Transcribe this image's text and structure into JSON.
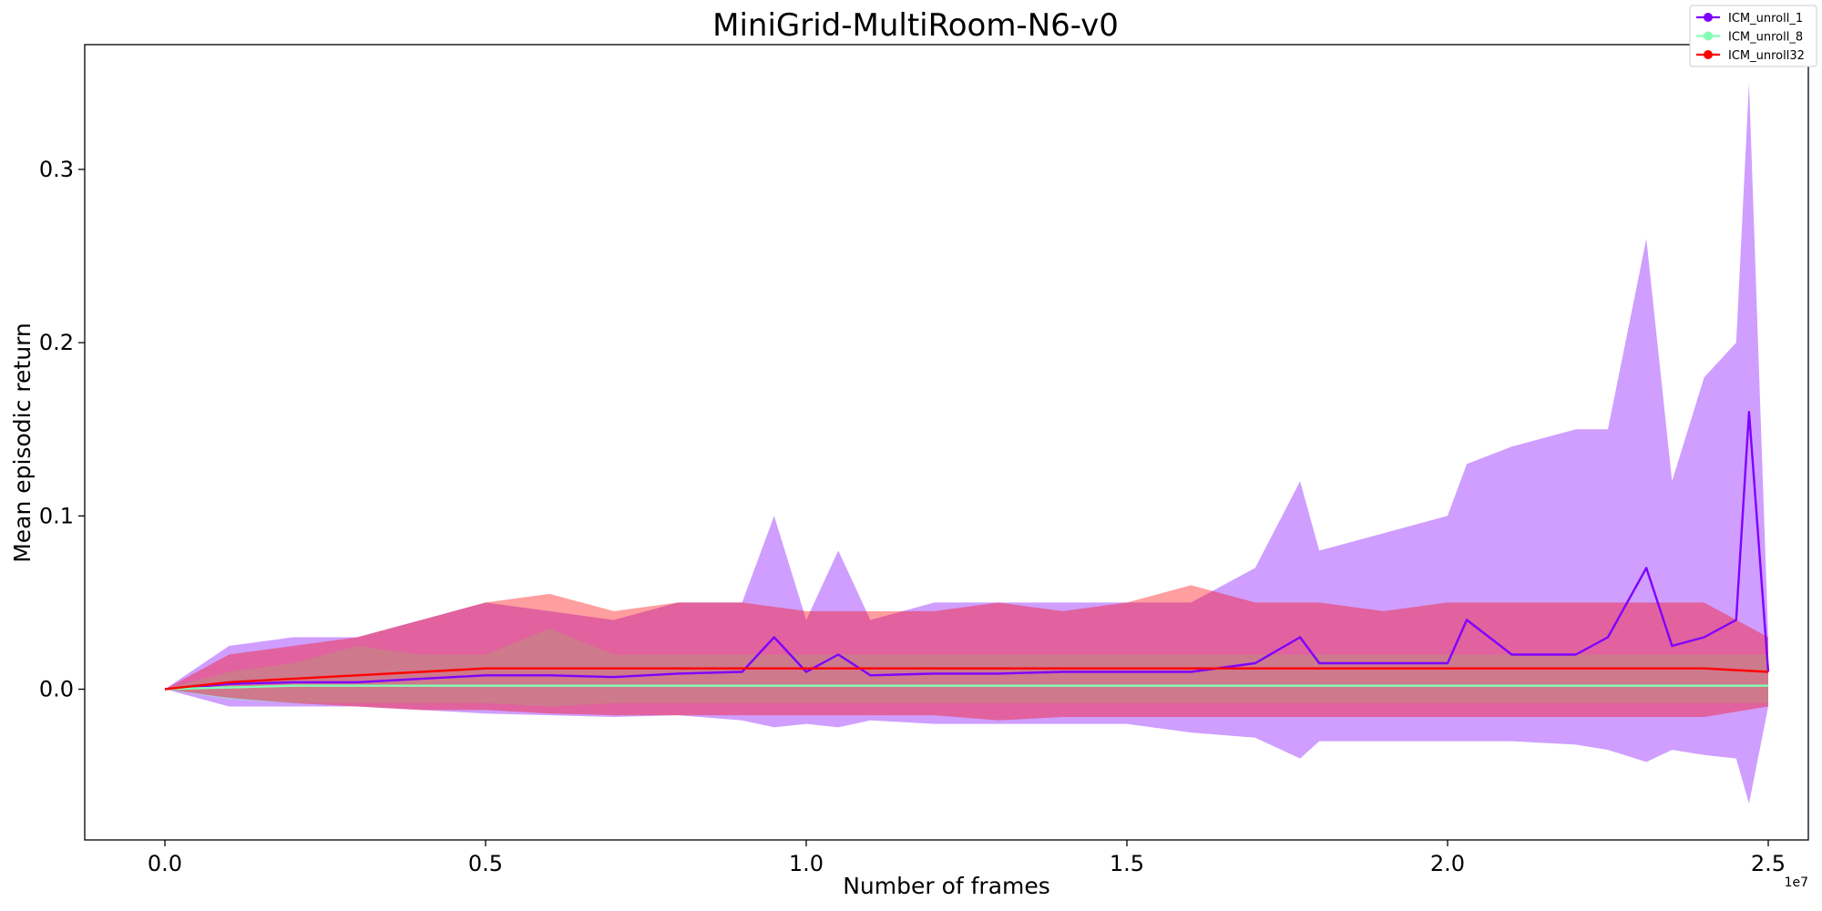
{
  "chart_data": {
    "type": "line",
    "title": "MiniGrid-MultiRoom-N6-v0",
    "xlabel": "Number of frames",
    "ylabel": "Mean episodic return",
    "x_offset_label": "1e7",
    "xlim": [
      -0.125,
      2.5625
    ],
    "ylim": [
      -0.087,
      0.372
    ],
    "x_ticks": [
      0.0,
      0.5,
      1.0,
      1.5,
      2.0,
      2.5
    ],
    "x_tick_labels": [
      "0.0",
      "0.5",
      "1.0",
      "1.5",
      "2.0",
      "2.5"
    ],
    "y_ticks": [
      0.0,
      0.1,
      0.2,
      0.3
    ],
    "y_tick_labels": [
      "0.0",
      "0.1",
      "0.2",
      "0.3"
    ],
    "grid": false,
    "legend_position": "top-right",
    "series": [
      {
        "name": "ICM_unroll_1",
        "color": "#8000ff",
        "x": [
          0.0,
          0.1,
          0.2,
          0.3,
          0.4,
          0.5,
          0.6,
          0.7,
          0.8,
          0.9,
          0.95,
          1.0,
          1.05,
          1.1,
          1.2,
          1.3,
          1.4,
          1.5,
          1.6,
          1.7,
          1.77,
          1.8,
          1.9,
          2.0,
          2.03,
          2.1,
          2.2,
          2.25,
          2.31,
          2.35,
          2.4,
          2.45,
          2.47,
          2.5
        ],
        "mean": [
          0.0,
          0.003,
          0.004,
          0.004,
          0.006,
          0.008,
          0.008,
          0.007,
          0.009,
          0.01,
          0.03,
          0.01,
          0.02,
          0.008,
          0.009,
          0.009,
          0.01,
          0.01,
          0.01,
          0.015,
          0.03,
          0.015,
          0.015,
          0.015,
          0.04,
          0.02,
          0.02,
          0.03,
          0.07,
          0.025,
          0.03,
          0.04,
          0.16,
          0.01
        ],
        "upper": [
          0.0,
          0.025,
          0.03,
          0.03,
          0.04,
          0.05,
          0.045,
          0.04,
          0.05,
          0.05,
          0.1,
          0.04,
          0.08,
          0.04,
          0.05,
          0.05,
          0.05,
          0.05,
          0.05,
          0.07,
          0.12,
          0.08,
          0.09,
          0.1,
          0.13,
          0.14,
          0.15,
          0.15,
          0.26,
          0.12,
          0.18,
          0.2,
          0.35,
          0.03
        ],
        "lower": [
          0.0,
          -0.01,
          -0.01,
          -0.01,
          -0.012,
          -0.014,
          -0.015,
          -0.016,
          -0.015,
          -0.018,
          -0.022,
          -0.02,
          -0.022,
          -0.018,
          -0.02,
          -0.02,
          -0.02,
          -0.02,
          -0.025,
          -0.028,
          -0.04,
          -0.03,
          -0.03,
          -0.03,
          -0.03,
          -0.03,
          -0.032,
          -0.035,
          -0.042,
          -0.035,
          -0.038,
          -0.04,
          -0.066,
          -0.01
        ]
      },
      {
        "name": "ICM_unroll_8",
        "color": "#80ffb4",
        "x": [
          0.0,
          0.1,
          0.2,
          0.3,
          0.4,
          0.5,
          0.6,
          0.7,
          0.8,
          0.9,
          1.0,
          1.1,
          1.2,
          1.3,
          1.4,
          1.5,
          1.6,
          1.7,
          1.8,
          1.9,
          2.0,
          2.1,
          2.2,
          2.3,
          2.4,
          2.5
        ],
        "mean": [
          0.0,
          0.001,
          0.002,
          0.002,
          0.002,
          0.002,
          0.002,
          0.002,
          0.002,
          0.002,
          0.002,
          0.002,
          0.002,
          0.002,
          0.002,
          0.002,
          0.002,
          0.002,
          0.002,
          0.002,
          0.002,
          0.002,
          0.002,
          0.002,
          0.002,
          0.002
        ],
        "upper": [
          0.0,
          0.01,
          0.015,
          0.025,
          0.02,
          0.02,
          0.035,
          0.02,
          0.02,
          0.02,
          0.02,
          0.02,
          0.02,
          0.02,
          0.02,
          0.02,
          0.02,
          0.02,
          0.02,
          0.02,
          0.02,
          0.02,
          0.02,
          0.02,
          0.02,
          0.02
        ],
        "lower": [
          0.0,
          -0.006,
          -0.008,
          -0.008,
          -0.008,
          -0.008,
          -0.01,
          -0.008,
          -0.008,
          -0.008,
          -0.008,
          -0.008,
          -0.008,
          -0.008,
          -0.008,
          -0.008,
          -0.008,
          -0.008,
          -0.008,
          -0.008,
          -0.008,
          -0.008,
          -0.008,
          -0.008,
          -0.008,
          -0.008
        ]
      },
      {
        "name": "ICM_unroll32",
        "color": "#ff0000",
        "x": [
          0.0,
          0.1,
          0.2,
          0.3,
          0.4,
          0.5,
          0.6,
          0.7,
          0.8,
          0.9,
          1.0,
          1.1,
          1.2,
          1.3,
          1.4,
          1.5,
          1.6,
          1.7,
          1.8,
          1.9,
          2.0,
          2.1,
          2.2,
          2.3,
          2.4,
          2.5
        ],
        "mean": [
          0.0,
          0.004,
          0.006,
          0.008,
          0.01,
          0.012,
          0.012,
          0.012,
          0.012,
          0.012,
          0.012,
          0.012,
          0.012,
          0.012,
          0.012,
          0.012,
          0.012,
          0.012,
          0.012,
          0.012,
          0.012,
          0.012,
          0.012,
          0.012,
          0.012,
          0.01
        ],
        "upper": [
          0.0,
          0.02,
          0.025,
          0.03,
          0.04,
          0.05,
          0.055,
          0.045,
          0.05,
          0.05,
          0.045,
          0.045,
          0.045,
          0.05,
          0.045,
          0.05,
          0.06,
          0.05,
          0.05,
          0.045,
          0.05,
          0.05,
          0.05,
          0.05,
          0.05,
          0.03
        ],
        "lower": [
          0.0,
          -0.005,
          -0.008,
          -0.01,
          -0.012,
          -0.012,
          -0.014,
          -0.015,
          -0.015,
          -0.015,
          -0.015,
          -0.015,
          -0.015,
          -0.018,
          -0.016,
          -0.016,
          -0.016,
          -0.016,
          -0.016,
          -0.016,
          -0.016,
          -0.016,
          -0.016,
          -0.016,
          -0.016,
          -0.01
        ]
      }
    ]
  }
}
